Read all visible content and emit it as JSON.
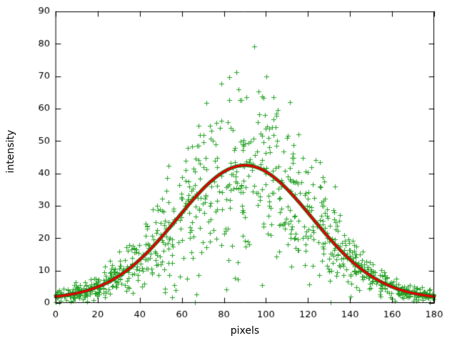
{
  "chart_data": {
    "type": "scatter",
    "title": "",
    "xlabel": "pixels",
    "ylabel": "intensity",
    "xlim": [
      0,
      180
    ],
    "ylim": [
      0,
      90
    ],
    "x_ticks": [
      0,
      20,
      40,
      60,
      80,
      100,
      120,
      140,
      160,
      180
    ],
    "y_ticks": [
      0,
      10,
      20,
      30,
      40,
      50,
      60,
      70,
      80,
      90
    ],
    "grid": false,
    "legend": "none",
    "tick_style": {
      "length": 7,
      "direction": "in",
      "mirrored": true
    },
    "colors": {
      "background": "#ffffff",
      "axis": "#000000",
      "scatter": "#29a329",
      "smooth_line": "#1d7a1d",
      "fit_line": "#e60000"
    },
    "fit_model": {
      "shape": "gaussian",
      "baseline": 1.2,
      "amplitude": 41.3,
      "center": 90,
      "sigma": 32,
      "peak_value": 42.5
    },
    "scatter_points": {
      "n_points": 950,
      "marker": "plus",
      "marker_size": 7,
      "seed": 987654321,
      "x_range": [
        0,
        180
      ],
      "noise_rel": 0.36,
      "noise_abs": 0.9,
      "y_clamp_min": 0.3,
      "y_clamp_max": 88,
      "y_max_observed": 82,
      "distribution": "gaussian-profile with proportional spread"
    }
  }
}
